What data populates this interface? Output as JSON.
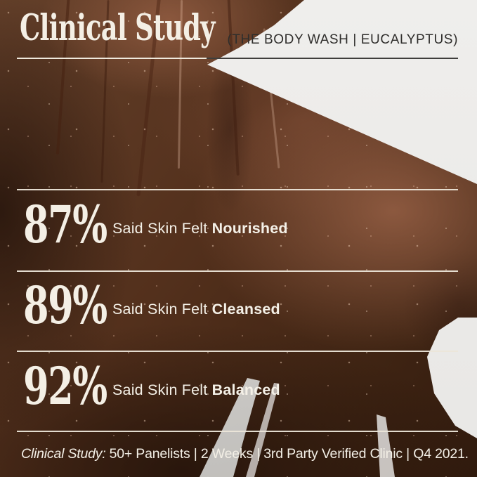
{
  "header": {
    "title": "Clinical Study",
    "product_label": "(THE BODY WASH | EUCALYPTUS)"
  },
  "stats": [
    {
      "value": "87%",
      "prefix": "Said Skin Felt",
      "highlight": "Nourished"
    },
    {
      "value": "89%",
      "prefix": "Said Skin Felt",
      "highlight": "Cleansed"
    },
    {
      "value": "92%",
      "prefix": "Said Skin Felt",
      "highlight": "Balanced"
    }
  ],
  "footer": {
    "study_label": "Clinical Study:",
    "details": "50+ Panelists | 2 Weeks | 3rd Party Verified Clinic | Q4 2021."
  },
  "colors": {
    "cream_text": "#f4efe5",
    "rule_cream": "#ece6d9",
    "rule_dark": "#3f3e3c",
    "header_label_text": "#2f2e2c",
    "background_light": "#ededeb",
    "skin_dark": "#3a2318",
    "skin_highlight": "#8a5238"
  }
}
